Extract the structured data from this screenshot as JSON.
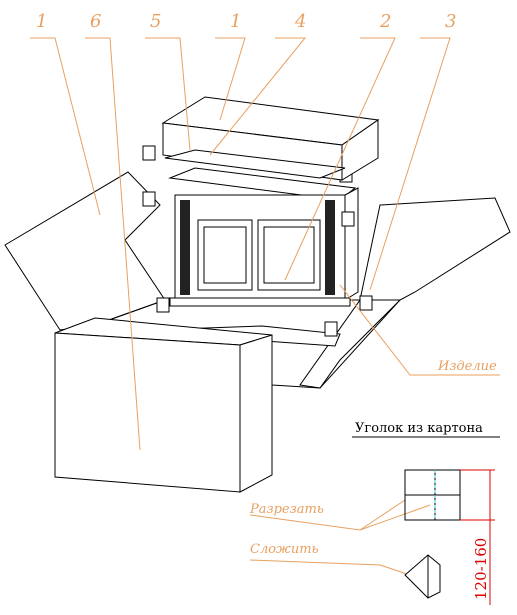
{
  "callouts": [
    "1",
    "6",
    "5",
    "1",
    "4",
    "2",
    "3"
  ],
  "labels": {
    "product": "Изделие",
    "corner": "Уголок из картона",
    "cut": "Разрезать",
    "fold": "Сложить",
    "dimension": "120-160"
  }
}
